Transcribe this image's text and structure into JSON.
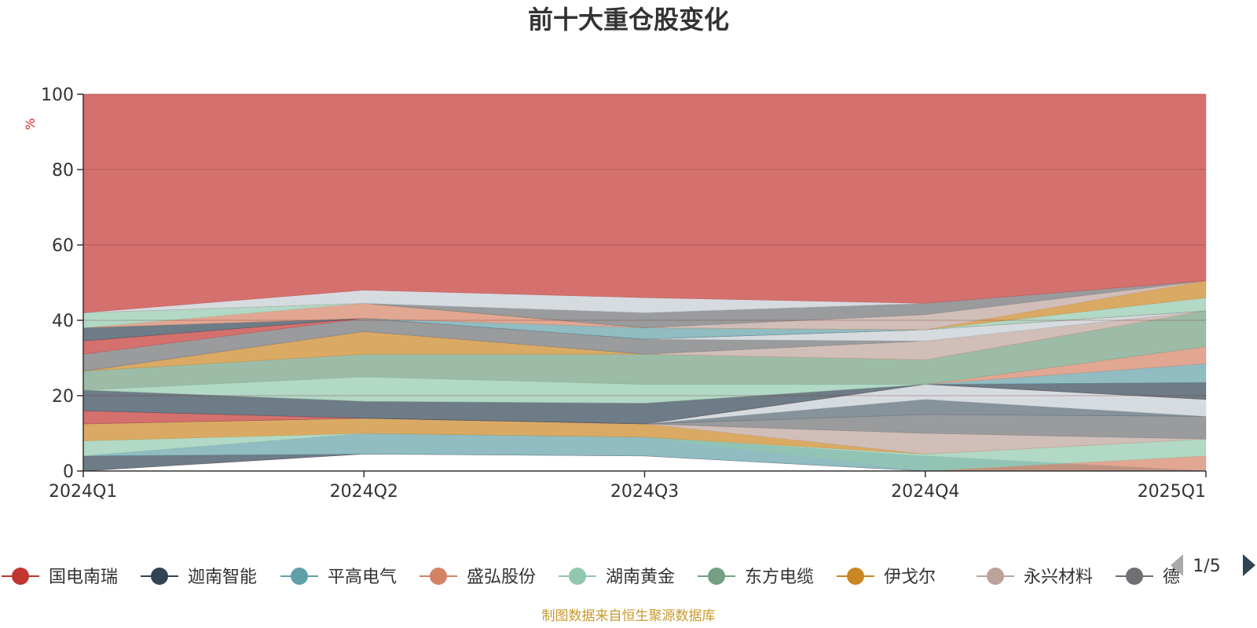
{
  "chart_data": {
    "type": "area",
    "title": "前十大重仓股变化",
    "ylabel": "%",
    "ylim": [
      0,
      100
    ],
    "yticks": [
      0,
      20,
      40,
      60,
      80,
      100
    ],
    "categories": [
      "2024Q1",
      "2024Q2",
      "2024Q3",
      "2024Q4",
      "2025Q1"
    ],
    "grid": true,
    "legend_position": "bottom",
    "legend": {
      "items": [
        {
          "name": "国电南瑞",
          "color": "#c23531"
        },
        {
          "name": "迦南智能",
          "color": "#2f4554"
        },
        {
          "name": "平高电气",
          "color": "#61a0a8"
        },
        {
          "name": "盛弘股份",
          "color": "#d48265"
        },
        {
          "name": "湖南黄金",
          "color": "#91c7ae"
        },
        {
          "name": "东方电缆",
          "color": "#749f83"
        },
        {
          "name": "伊戈尔",
          "color": "#ca8622"
        },
        {
          "name": "永兴材料",
          "color": "#bda29a"
        },
        {
          "name": "德",
          "color": "#6e7074"
        }
      ],
      "page": "1/5"
    },
    "bands": [
      {
        "color": "#c23531",
        "lower": [
          0,
          4.5,
          4,
          0,
          0
        ],
        "upper": [
          0,
          4.5,
          4,
          0,
          0
        ]
      },
      {
        "color": "#2f4554",
        "lower": [
          0,
          4.5,
          4,
          0,
          0
        ],
        "upper": [
          4,
          4.5,
          4,
          0,
          0
        ]
      },
      {
        "color": "#61a0a8",
        "lower": [
          4,
          4.5,
          4,
          0,
          0
        ],
        "upper": [
          4,
          10,
          9,
          4,
          0
        ]
      },
      {
        "color": "#d48265",
        "lower": [
          0,
          0,
          0,
          0,
          0
        ],
        "upper": [
          0,
          0,
          0,
          0,
          4
        ]
      },
      {
        "color": "#91c7ae",
        "lower": [
          4,
          10,
          9,
          0,
          4
        ],
        "upper": [
          8,
          10,
          9,
          4.5,
          8.5
        ]
      },
      {
        "color": "#ca8622",
        "lower": [
          8,
          10,
          9,
          4.5,
          8.5
        ],
        "upper": [
          12.5,
          14,
          12.5,
          4.5,
          8.5
        ]
      },
      {
        "color": "#bda29a",
        "lower": [
          12.5,
          14,
          12.5,
          4.5,
          8.5
        ],
        "upper": [
          12.5,
          14,
          12.5,
          10,
          8.5
        ]
      },
      {
        "color": "#6e7074",
        "lower": [
          12.5,
          14,
          12.5,
          10,
          8.5
        ],
        "upper": [
          12.5,
          14,
          12.5,
          15,
          14.5
        ]
      },
      {
        "color": "#546570",
        "lower": [
          12.5,
          14,
          12.5,
          15,
          14.5
        ],
        "upper": [
          12.5,
          14,
          12.5,
          19,
          14.5
        ]
      },
      {
        "color": "#c4ccd3",
        "lower": [
          12.5,
          14,
          12.5,
          19,
          14.5
        ],
        "upper": [
          12.5,
          14,
          12.5,
          23,
          19
        ]
      },
      {
        "color": "#c23531",
        "lower": [
          12.5,
          14,
          12.5,
          23,
          19
        ],
        "upper": [
          16,
          14,
          12.5,
          23,
          19
        ]
      },
      {
        "color": "#2f4554",
        "lower": [
          16,
          14,
          12.5,
          23,
          19
        ],
        "upper": [
          21.5,
          18.5,
          18,
          23,
          23.5
        ]
      },
      {
        "color": "#61a0a8",
        "lower": [
          21.5,
          18.5,
          18,
          23,
          23.5
        ],
        "upper": [
          21.5,
          18.5,
          18,
          23,
          28.5
        ]
      },
      {
        "color": "#d48265",
        "lower": [
          21.5,
          18.5,
          18,
          23,
          28.5
        ],
        "upper": [
          21.5,
          18.5,
          18,
          23,
          33
        ]
      },
      {
        "color": "#91c7ae",
        "lower": [
          21.5,
          18.5,
          18,
          23,
          33
        ],
        "upper": [
          21.5,
          25,
          23,
          23,
          33
        ]
      },
      {
        "color": "#749f83",
        "lower": [
          21.5,
          25,
          23,
          23,
          33
        ],
        "upper": [
          26.5,
          31,
          31,
          29.5,
          42.5
        ]
      },
      {
        "color": "#ca8622",
        "lower": [
          26.5,
          31,
          31,
          29.5,
          42.5
        ],
        "upper": [
          26.5,
          37,
          31,
          29.5,
          42.5
        ]
      },
      {
        "color": "#bda29a",
        "lower": [
          26.5,
          37,
          31,
          29.5,
          42.5
        ],
        "upper": [
          26.5,
          37,
          31,
          34.5,
          42.5
        ]
      },
      {
        "color": "#6e7074",
        "lower": [
          26.5,
          37,
          31,
          34.5,
          42.5
        ],
        "upper": [
          31,
          40.5,
          35,
          34.5,
          42.5
        ]
      },
      {
        "color": "#c4ccd3",
        "lower": [
          31,
          40.5,
          35,
          34.5,
          42.5
        ],
        "upper": [
          31,
          40.5,
          35,
          37.5,
          42.5
        ]
      },
      {
        "color": "#c23531",
        "lower": [
          31,
          40.5,
          35,
          37.5,
          42.5
        ],
        "upper": [
          34.5,
          40.5,
          35,
          37.5,
          42.5
        ]
      },
      {
        "color": "#2f4554",
        "lower": [
          34.5,
          40.5,
          35,
          37.5,
          42.5
        ],
        "upper": [
          38,
          40.5,
          35,
          37.5,
          42.5
        ]
      },
      {
        "color": "#61a0a8",
        "lower": [
          38,
          40.5,
          35,
          37.5,
          42.5
        ],
        "upper": [
          38,
          40.5,
          38,
          37.5,
          42.5
        ]
      },
      {
        "color": "#d48265",
        "lower": [
          38,
          40.5,
          38,
          37.5,
          42.5
        ],
        "upper": [
          38,
          44.5,
          38,
          37.5,
          42.5
        ]
      },
      {
        "color": "#91c7ae",
        "lower": [
          38,
          44.5,
          38,
          37.5,
          42.5
        ],
        "upper": [
          42,
          44.5,
          38,
          37.5,
          46
        ]
      },
      {
        "color": "#ca8622",
        "lower": [
          42,
          44.5,
          38,
          37.5,
          46
        ],
        "upper": [
          42,
          44.5,
          38,
          37.5,
          50.5
        ]
      },
      {
        "color": "#bda29a",
        "lower": [
          42,
          44.5,
          38,
          37.5,
          50.5
        ],
        "upper": [
          42,
          44.5,
          38,
          41.5,
          50.5
        ]
      },
      {
        "color": "#6e7074",
        "lower": [
          42,
          44.5,
          38,
          41.5,
          50.5
        ],
        "upper": [
          42,
          44.5,
          42,
          44.5,
          50.5
        ]
      },
      {
        "color": "#c4ccd3",
        "lower": [
          42,
          44.5,
          42,
          44.5,
          50.5
        ],
        "upper": [
          42,
          48,
          46,
          44.5,
          50.5
        ]
      },
      {
        "color": "#c23531",
        "lower": [
          42,
          48,
          46,
          44.5,
          50.5
        ],
        "upper": [
          100,
          100,
          100,
          100,
          100
        ]
      }
    ]
  },
  "footer": {
    "source": "制图数据来自恒生聚源数据库"
  }
}
